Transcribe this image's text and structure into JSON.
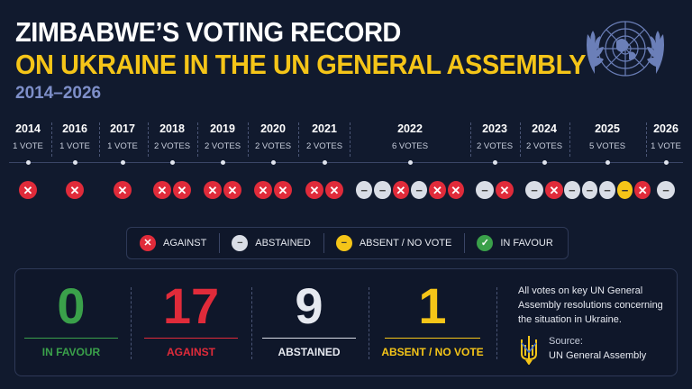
{
  "header": {
    "title_line1": "ZIMBABWE’S VOTING RECORD",
    "title_line2": "ON UKRAINE IN THE UN GENERAL ASSEMBLY",
    "period": "2014–2026"
  },
  "colors": {
    "against": "#e02b3a",
    "abstained": "#d9dde6",
    "absent": "#f5c518",
    "favour": "#3aa04a",
    "background": "#111a2e"
  },
  "timeline": [
    {
      "year": "2014",
      "count": "1 VOTE",
      "votes": [
        "against"
      ]
    },
    {
      "year": "2016",
      "count": "1 VOTE",
      "votes": [
        "against"
      ]
    },
    {
      "year": "2017",
      "count": "1 VOTE",
      "votes": [
        "against"
      ]
    },
    {
      "year": "2018",
      "count": "2 VOTES",
      "votes": [
        "against",
        "against"
      ]
    },
    {
      "year": "2019",
      "count": "2 VOTES",
      "votes": [
        "against",
        "against"
      ]
    },
    {
      "year": "2020",
      "count": "2 VOTES",
      "votes": [
        "against",
        "against"
      ]
    },
    {
      "year": "2021",
      "count": "2 VOTES",
      "votes": [
        "against",
        "against"
      ]
    },
    {
      "year": "2022",
      "count": "6 VOTES",
      "votes": [
        "abstained",
        "abstained",
        "against",
        "abstained",
        "against",
        "against"
      ]
    },
    {
      "year": "2023",
      "count": "2 VOTES",
      "votes": [
        "abstained",
        "against"
      ]
    },
    {
      "year": "2024",
      "count": "2 VOTES",
      "votes": [
        "abstained",
        "against"
      ]
    },
    {
      "year": "2025",
      "count": "5 VOTES",
      "votes": [
        "abstained",
        "abstained",
        "abstained",
        "absent",
        "against"
      ]
    },
    {
      "year": "2026",
      "count": "1 VOTE",
      "votes": [
        "abstained"
      ]
    }
  ],
  "legend": {
    "against": "AGAINST",
    "abstained": "ABSTAINED",
    "absent": "ABSENT / NO VOTE",
    "favour": "IN FAVOUR"
  },
  "stats": {
    "favour": {
      "value": "0",
      "label": "IN FAVOUR"
    },
    "against": {
      "value": "17",
      "label": "AGAINST"
    },
    "abstained": {
      "value": "9",
      "label": "ABSTAINED"
    },
    "absent": {
      "value": "1",
      "label": "ABSENT / NO VOTE"
    }
  },
  "note": "All votes on key UN General Assembly resolutions concerning the situation in Ukraine.",
  "source": {
    "label": "Source:",
    "value": "UN General Assembly"
  },
  "icons": {
    "emblem": "un-emblem-icon",
    "trident": "ukraine-trident-icon",
    "against": "cross-icon",
    "abstained": "minus-icon",
    "absent": "minus-icon",
    "favour": "check-icon"
  }
}
